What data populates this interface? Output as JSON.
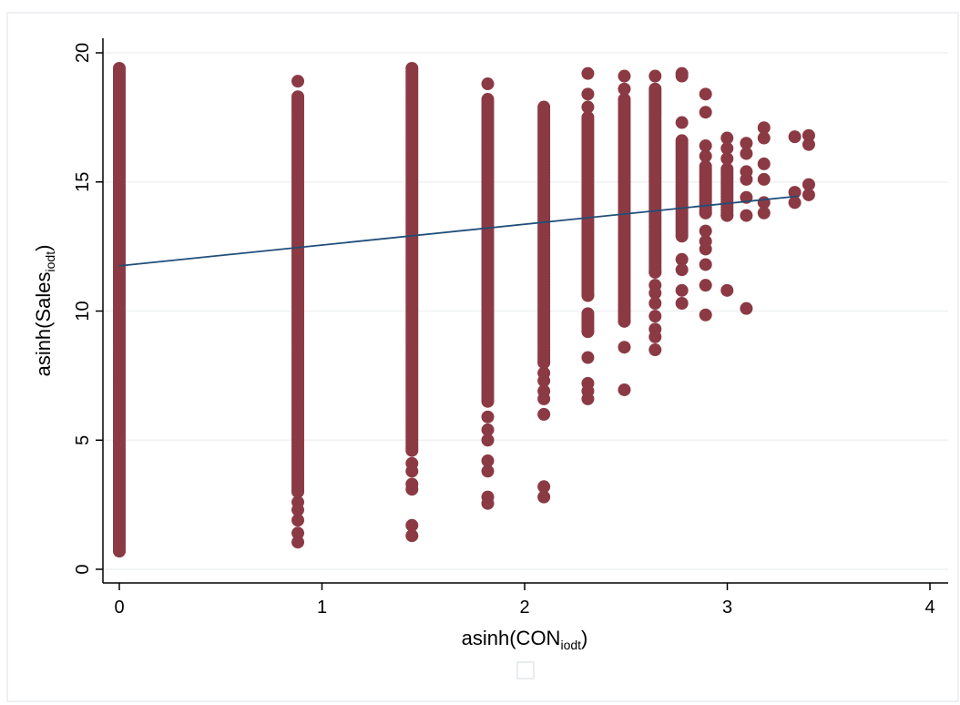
{
  "chart_data": {
    "type": "scatter",
    "title": "",
    "xlabel": {
      "base": "asinh(CON",
      "sub": "iodt",
      "close": ")"
    },
    "ylabel": {
      "base": "asinh(Sales",
      "sub": "iodt",
      "close": ")"
    },
    "xlim": [
      0,
      4
    ],
    "ylim": [
      0,
      20
    ],
    "xticks": [
      0,
      1,
      2,
      3,
      4
    ],
    "yticks": [
      0,
      5,
      10,
      15,
      20
    ],
    "grid": "horizontal",
    "legend": "bottom-center (empty)",
    "colors": {
      "points": "#8b3a44",
      "fit_line": "#1f4e79",
      "grid": "#eef1f3",
      "frame": "#e8ecef"
    },
    "columns": [
      {
        "x": 0.0,
        "ranges": [
          [
            0.7,
            19.4
          ]
        ],
        "points": []
      },
      {
        "x": 0.881,
        "ranges": [
          [
            3.0,
            18.3
          ]
        ],
        "points": [
          1.05,
          1.4,
          1.9,
          2.3,
          2.6,
          18.9
        ]
      },
      {
        "x": 1.444,
        "ranges": [
          [
            4.6,
            19.4
          ]
        ],
        "points": [
          1.3,
          1.7,
          3.1,
          3.3,
          3.8,
          4.1
        ]
      },
      {
        "x": 1.818,
        "ranges": [
          [
            6.5,
            18.2
          ]
        ],
        "points": [
          2.55,
          2.8,
          3.8,
          4.2,
          5.0,
          5.4,
          5.9,
          18.8
        ]
      },
      {
        "x": 2.095,
        "ranges": [
          [
            8.0,
            17.9
          ]
        ],
        "points": [
          2.8,
          3.2,
          6.0,
          6.6,
          6.9,
          7.3,
          7.6
        ]
      },
      {
        "x": 2.312,
        "ranges": [
          [
            10.6,
            17.5
          ],
          [
            9.2,
            9.9
          ]
        ],
        "points": [
          6.6,
          6.9,
          7.2,
          8.2,
          17.9,
          18.4,
          19.2
        ]
      },
      {
        "x": 2.492,
        "ranges": [
          [
            9.6,
            18.2
          ]
        ],
        "points": [
          6.95,
          8.6,
          18.6,
          19.1
        ]
      },
      {
        "x": 2.644,
        "ranges": [
          [
            11.5,
            18.6
          ]
        ],
        "points": [
          8.5,
          9.0,
          9.3,
          9.8,
          10.3,
          10.7,
          11.0,
          19.1
        ]
      },
      {
        "x": 2.776,
        "ranges": [
          [
            12.9,
            16.6
          ]
        ],
        "points": [
          10.3,
          10.8,
          11.6,
          12.0,
          17.3,
          19.1,
          19.2
        ]
      },
      {
        "x": 2.893,
        "ranges": [
          [
            13.8,
            15.6
          ]
        ],
        "points": [
          9.85,
          11.0,
          11.8,
          12.4,
          12.7,
          13.1,
          16.0,
          16.4,
          17.7,
          18.4
        ]
      },
      {
        "x": 2.999,
        "ranges": [
          [
            13.7,
            15.5
          ]
        ],
        "points": [
          10.8,
          15.9,
          16.3,
          16.7
        ]
      },
      {
        "x": 3.094,
        "ranges": [],
        "points": [
          10.1,
          13.7,
          14.4,
          15.1,
          15.4,
          16.1,
          16.5
        ]
      },
      {
        "x": 3.181,
        "ranges": [],
        "points": [
          13.8,
          14.2,
          15.1,
          15.7,
          16.7,
          17.1
        ]
      },
      {
        "x": 3.333,
        "ranges": [],
        "points": [
          14.2,
          14.6,
          16.75
        ]
      },
      {
        "x": 3.402,
        "ranges": [],
        "points": [
          14.5,
          14.9,
          16.45,
          16.8
        ]
      }
    ],
    "fit_line": {
      "x": [
        0,
        3.35
      ],
      "y": [
        11.75,
        14.45
      ]
    }
  }
}
